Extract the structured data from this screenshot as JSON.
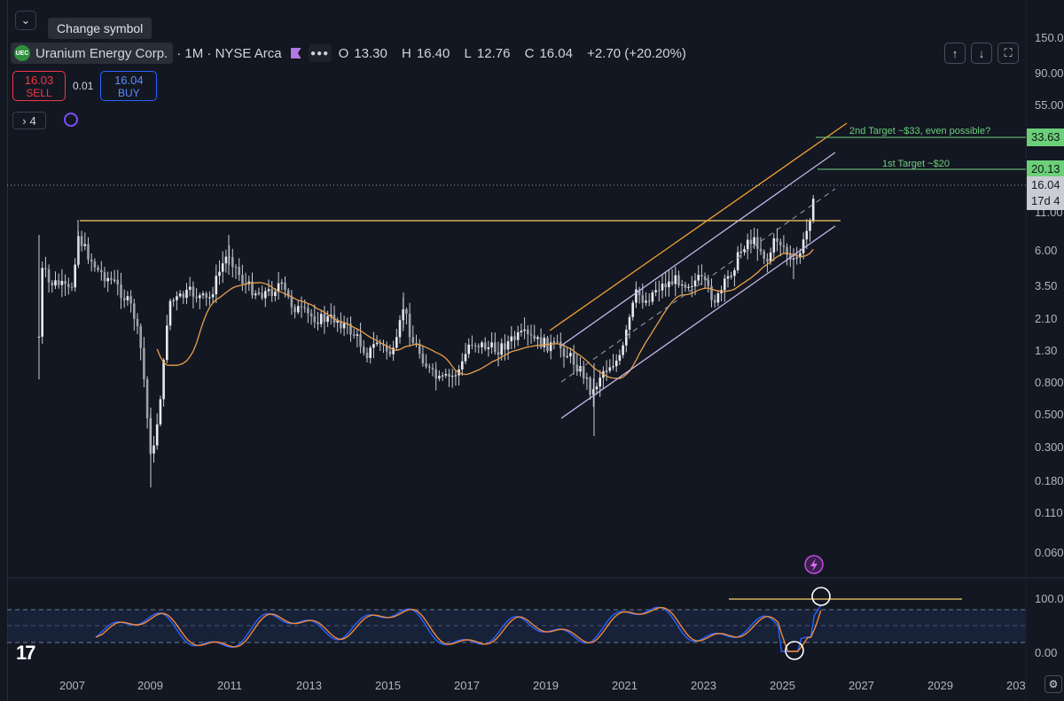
{
  "tooltip": "Change symbol",
  "legend": {
    "symbol": "Uranium Energy Corp.",
    "logo_text": "UEC",
    "interval": "· 1M · NYSE Arca",
    "open_label": "O",
    "open": "13.30",
    "high_label": "H",
    "high": "16.40",
    "low_label": "L",
    "low": "12.76",
    "close_label": "C",
    "close": "16.04",
    "change": "+2.70 (+20.20%)"
  },
  "trade": {
    "sell_price": "16.03",
    "sell_label": "SELL",
    "spread": "0.01",
    "buy_price": "16.04",
    "buy_label": "BUY"
  },
  "indicators_count": "4",
  "annotations": {
    "target2": "2nd Target ~$33, even possible?",
    "target1": "1st Target ~$20"
  },
  "price_tags": {
    "target2": "33.63",
    "target1": "20.13",
    "last": "16.04",
    "countdown": "17d 4"
  },
  "y_axis_labels": [
    "150.0",
    "90.00",
    "55.00",
    "33.63",
    "20.13",
    "11.00",
    "6.00",
    "3.50",
    "2.10",
    "1.30",
    "0.800",
    "0.500",
    "0.300",
    "0.180",
    "0.110",
    "0.060"
  ],
  "osc_labels": [
    "100.00",
    "0.00"
  ],
  "x_axis_labels": [
    "2007",
    "2009",
    "2011",
    "2013",
    "2015",
    "2017",
    "2019",
    "2021",
    "2023",
    "2025",
    "2027",
    "2029",
    "203"
  ],
  "colors": {
    "background": "#131722",
    "candle": "#c9ccd3",
    "ma": "#e8a04a",
    "channel": "#c9b6e8",
    "orange_line": "#f5a030",
    "resistance": "#f7d36a",
    "target_green": "#6ccf7a",
    "stoch_k": "#2962ff",
    "stoch_d": "#f08a3a"
  },
  "icons": {
    "collapse": "chevron-down-icon",
    "more": "more-dots-icon",
    "up": "arrow-up-icon",
    "down": "arrow-down-icon",
    "fullscreen": "fullscreen-icon",
    "alert": "lightning-icon",
    "settings": "gear-icon",
    "sync": "sync-icon",
    "logo": "tradingview-logo-icon"
  }
}
